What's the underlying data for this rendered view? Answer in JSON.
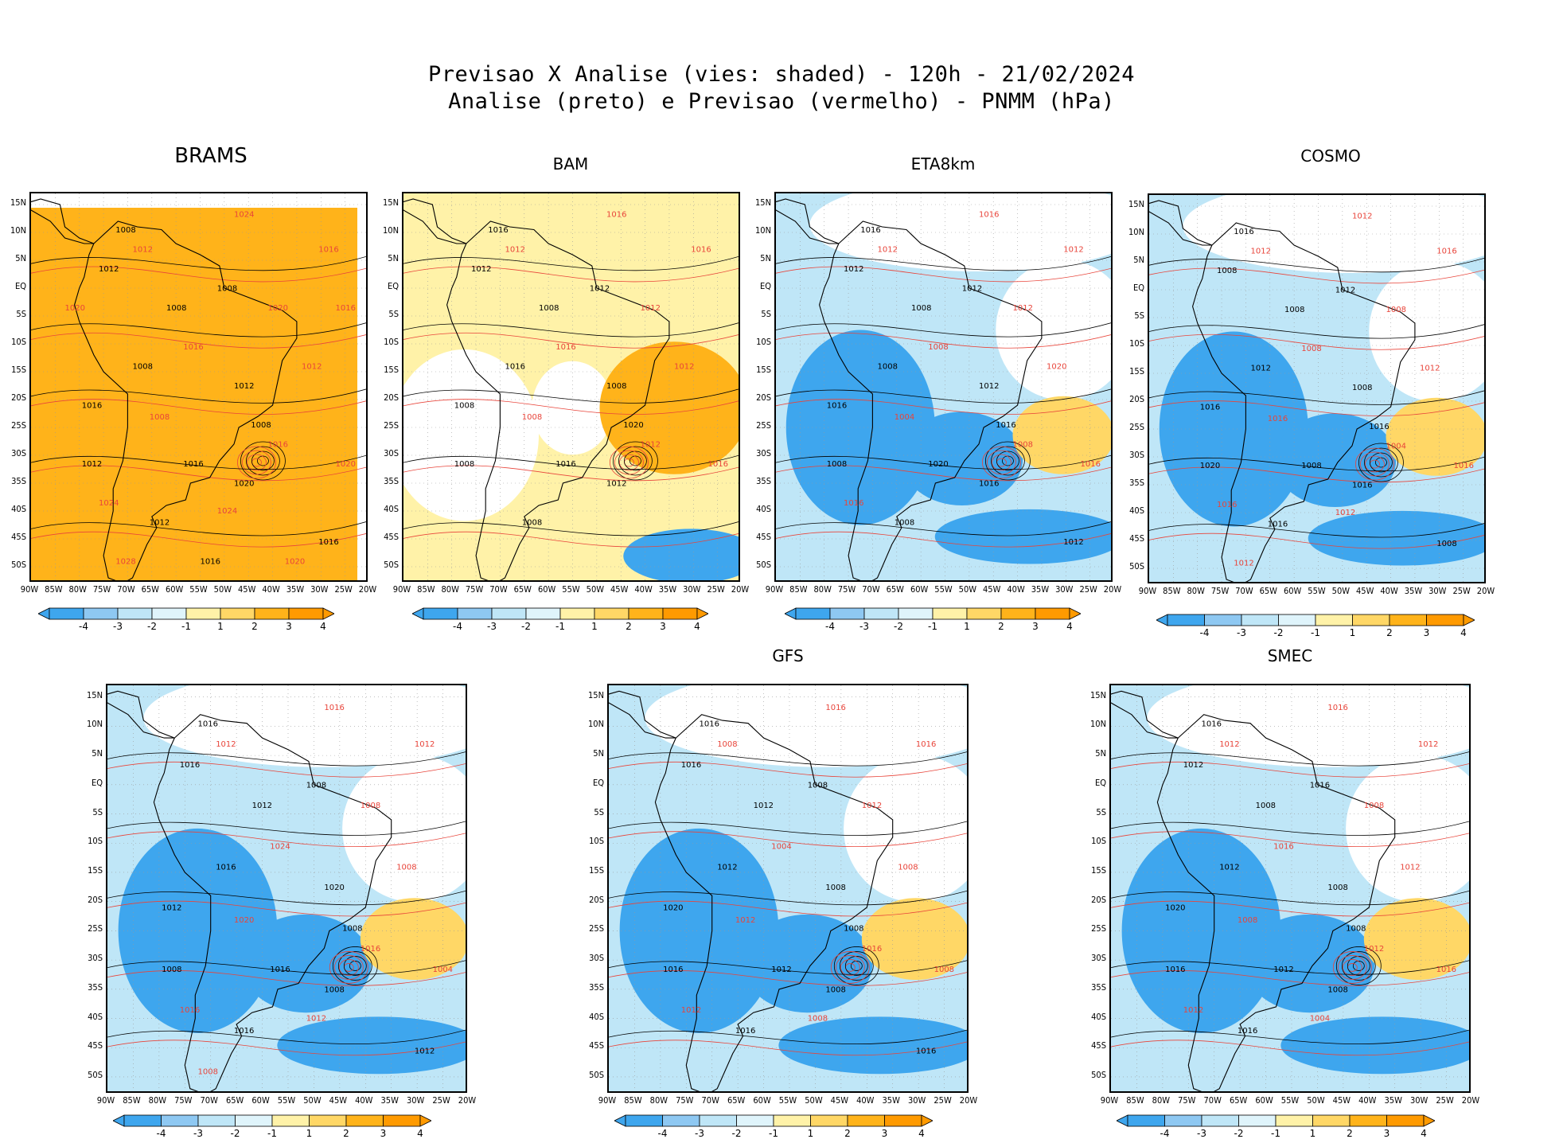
{
  "header": {
    "line1": "Previsao X Analise (vies: shaded) - 120h - 21/02/2024",
    "line2": "Analise (preto) e Previsao (vermelho) - PNMM (hPa)"
  },
  "lat_labels": [
    "15N",
    "10N",
    "5N",
    "EQ",
    "5S",
    "10S",
    "15S",
    "20S",
    "25S",
    "30S",
    "35S",
    "40S",
    "45S",
    "50S"
  ],
  "lon_labels": [
    "90W",
    "85W",
    "80W",
    "75W",
    "70W",
    "65W",
    "60W",
    "55W",
    "50W",
    "45W",
    "40W",
    "35W",
    "30W",
    "25W",
    "20W"
  ],
  "colorbar": {
    "labels": [
      "-4",
      "-3",
      "-2",
      "-1",
      "1",
      "2",
      "3",
      "4"
    ],
    "colors": [
      "#3ea6ee",
      "#8ec8f2",
      "#bfe6f7",
      "#dff4fb",
      "#ffffff",
      "#fff2a8",
      "#ffd766",
      "#ffb31a",
      "#ff9a00"
    ]
  },
  "colors": {
    "analysis_contour": "#000000",
    "forecast_contour": "#e8443a",
    "map_border": "#000000"
  },
  "panels": [
    {
      "title": "BRAMS",
      "base": "orange",
      "black_labels": [
        "1008",
        "1012",
        "1008",
        "1008",
        "1008",
        "1016",
        "1012",
        "1008",
        "1012",
        "1016",
        "1020",
        "1012",
        "1016",
        "1016"
      ],
      "red_labels": [
        "1024",
        "1016",
        "1012",
        "1020",
        "1016",
        "1012",
        "1008",
        "1016",
        "1020",
        "1024",
        "1024",
        "1028",
        "1020",
        "1016",
        "1020"
      ]
    },
    {
      "title": "BAM",
      "base": "yellow",
      "black_labels": [
        "1016",
        "1012",
        "1008",
        "1012",
        "1016",
        "1008",
        "1008",
        "1020",
        "1008",
        "1016",
        "1012",
        "1008"
      ],
      "red_labels": [
        "1016",
        "1016",
        "1012",
        "1012",
        "1016",
        "1012",
        "1008",
        "1012",
        "1016"
      ]
    },
    {
      "title": "ETA8km",
      "base": "blue",
      "black_labels": [
        "1016",
        "1012",
        "1008",
        "1012",
        "1008",
        "1016",
        "1012",
        "1016",
        "1008",
        "1020",
        "1016",
        "1008",
        "1012"
      ],
      "red_labels": [
        "1016",
        "1012",
        "1012",
        "1012",
        "1008",
        "1020",
        "1004",
        "1008",
        "1016",
        "1016"
      ]
    },
    {
      "title": "COSMO",
      "base": "blue",
      "black_labels": [
        "1016",
        "1008",
        "1008",
        "1012",
        "1012",
        "1016",
        "1008",
        "1016",
        "1020",
        "1008",
        "1016",
        "1016",
        "1008"
      ],
      "red_labels": [
        "1012",
        "1016",
        "1012",
        "1008",
        "1008",
        "1012",
        "1016",
        "1004",
        "1016",
        "1016",
        "1012",
        "1012"
      ]
    },
    {
      "title": "",
      "base": "blue",
      "black_labels": [
        "1016",
        "1016",
        "1012",
        "1008",
        "1016",
        "1012",
        "1020",
        "1008",
        "1008",
        "1016",
        "1008",
        "1016",
        "1012"
      ],
      "red_labels": [
        "1016",
        "1012",
        "1012",
        "1008",
        "1024",
        "1008",
        "1020",
        "1016",
        "1004",
        "1016",
        "1012",
        "1008"
      ]
    },
    {
      "title": "GFS",
      "base": "blue",
      "black_labels": [
        "1016",
        "1016",
        "1012",
        "1008",
        "1012",
        "1020",
        "1008",
        "1008",
        "1016",
        "1012",
        "1008",
        "1016",
        "1016"
      ],
      "red_labels": [
        "1016",
        "1016",
        "1008",
        "1012",
        "1004",
        "1008",
        "1012",
        "1016",
        "1008",
        "1012",
        "1008"
      ]
    },
    {
      "title": "SMEC",
      "base": "blue",
      "black_labels": [
        "1016",
        "1012",
        "1008",
        "1016",
        "1012",
        "1020",
        "1008",
        "1008",
        "1016",
        "1012",
        "1008",
        "1016"
      ],
      "red_labels": [
        "1016",
        "1012",
        "1012",
        "1008",
        "1016",
        "1012",
        "1008",
        "1012",
        "1016",
        "1012",
        "1004"
      ]
    }
  ]
}
